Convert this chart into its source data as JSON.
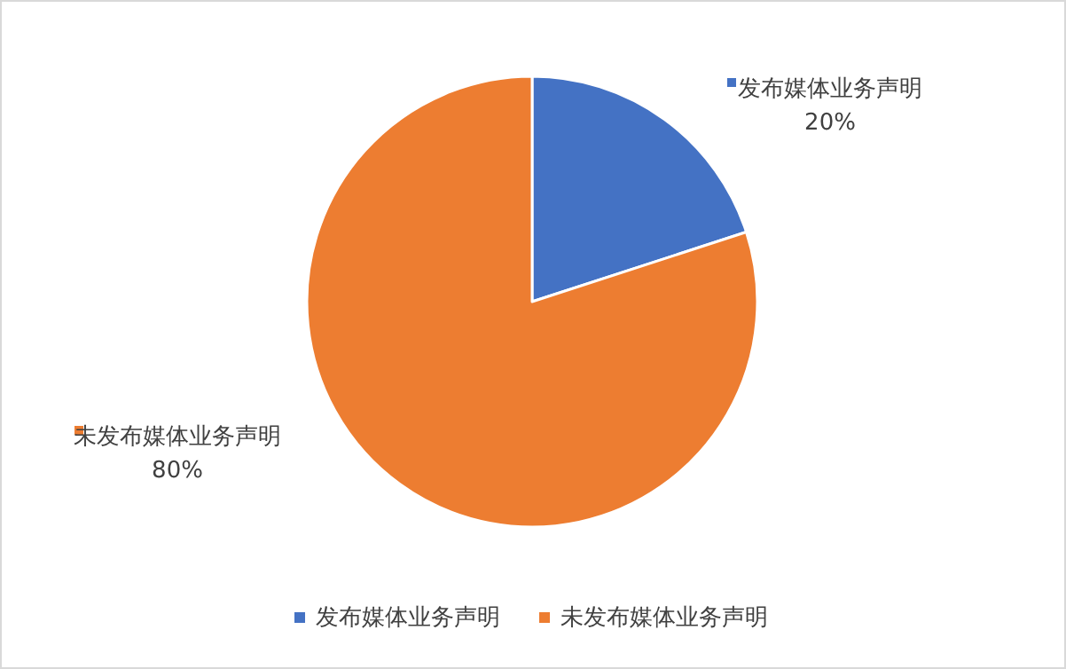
{
  "chart_data": {
    "type": "pie",
    "categories": [
      "发布媒体业务声明",
      "未发布媒体业务声明"
    ],
    "values": [
      20,
      80
    ],
    "colors": [
      "#4472c4",
      "#ed7d31"
    ],
    "value_labels": [
      "20%",
      "80%"
    ],
    "legend": "bottom"
  }
}
